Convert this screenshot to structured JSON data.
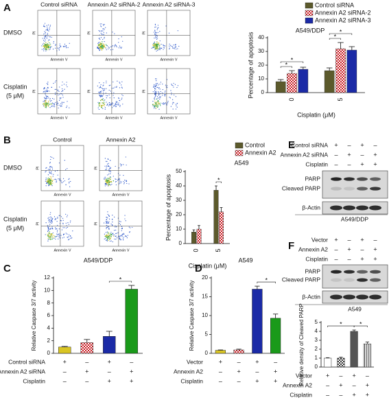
{
  "flow_cytometry": [
    {
      "panel": "A",
      "column_titles": [
        "Control siRNA",
        "Annexin A2 siRNA-2",
        "Annexin A2 siRNA-3"
      ],
      "row_labels": [
        [
          "DMSO"
        ],
        [
          "Cisplatin",
          "(5 μM)"
        ]
      ],
      "x_label": "Annexin V",
      "y_label": "PI"
    },
    {
      "panel": "B",
      "column_titles": [
        "Control",
        "Annexin A2"
      ],
      "row_labels": [
        [
          "DMSO"
        ],
        [
          "Cisplatin",
          "(5 μM)"
        ]
      ],
      "x_label": "Annexin V",
      "y_label": "PI"
    }
  ],
  "chart_data": [
    {
      "type": "grouped_bar",
      "title": "A549/DDP",
      "y_label": "Percentage of apoptosis",
      "x_label": "Cisplatin (μM)",
      "categories": [
        "0",
        "5"
      ],
      "ylim": [
        0,
        40
      ],
      "yticks": [
        0,
        10,
        20,
        30,
        40
      ],
      "series": [
        {
          "name": "Control siRNA",
          "color": "#5c5a2c",
          "pattern": "solid",
          "values": [
            8,
            16
          ],
          "errors": [
            1.5,
            2
          ]
        },
        {
          "name": "Annexin A2 siRNA-2",
          "color": "#c8161d",
          "pattern": "checker",
          "values": [
            14,
            32
          ],
          "errors": [
            2,
            4.5
          ]
        },
        {
          "name": "Annexin A2 siRNA-3",
          "color": "#1b2aa6",
          "pattern": "solid",
          "values": [
            17,
            31
          ],
          "errors": [
            1.5,
            2.5
          ]
        }
      ],
      "significance": [
        {
          "label": "*",
          "category": 0,
          "from": 0,
          "to": 1
        },
        {
          "label": "*",
          "category": 0,
          "from": 0,
          "to": 2
        },
        {
          "label": "*",
          "category": 1,
          "from": 0,
          "to": 1
        },
        {
          "label": "*",
          "category": 1,
          "from": 0,
          "to": 2
        }
      ]
    },
    {
      "type": "grouped_bar",
      "title": "A549",
      "y_label": "Percentage of apoptosis",
      "x_label": "Cisplatin (μM)",
      "categories": [
        "0",
        "5"
      ],
      "ylim": [
        0,
        50
      ],
      "yticks": [
        0,
        10,
        20,
        30,
        40,
        50
      ],
      "series": [
        {
          "name": "Control",
          "color": "#5c5a2c",
          "pattern": "solid",
          "values": [
            8,
            37
          ],
          "errors": [
            1.5,
            3
          ]
        },
        {
          "name": "Annexin A2",
          "color": "#c8161d",
          "pattern": "checker",
          "values": [
            10,
            22
          ],
          "errors": [
            2.5,
            3
          ]
        }
      ],
      "significance": [
        {
          "label": "*",
          "category": 1,
          "from": 0,
          "to": 1
        }
      ]
    },
    {
      "type": "bar",
      "title": "A549/DDP",
      "y_label": "Relative Caspase 3/7 activity",
      "ylim": [
        0,
        12
      ],
      "yticks": [
        0,
        2,
        4,
        6,
        8,
        10,
        12
      ],
      "values": [
        1,
        1.7,
        2.7,
        10.2
      ],
      "errors": [
        0.1,
        0.5,
        0.8,
        0.6
      ],
      "colors": [
        "#d9c524",
        "#c8161d",
        "#1b2aa6",
        "#1a9a1a"
      ],
      "patterns": [
        "solid",
        "checker",
        "solid",
        "solid"
      ],
      "conditions": [
        {
          "name": "Control siRNA",
          "signs": [
            "+",
            "–",
            "+",
            "–"
          ]
        },
        {
          "name": "Annexin A2 siRNA",
          "signs": [
            "–",
            "+",
            "–",
            "+"
          ]
        },
        {
          "name": "Cisplatin",
          "signs": [
            "–",
            "–",
            "+",
            "+"
          ]
        }
      ],
      "significance": [
        {
          "label": "*",
          "from": 2,
          "to": 3
        }
      ]
    },
    {
      "type": "bar",
      "title": "A549",
      "y_label": "Relative Caspase 3/7 activity",
      "ylim": [
        0,
        20
      ],
      "yticks": [
        0,
        5,
        10,
        15,
        20
      ],
      "values": [
        0.8,
        0.9,
        17,
        9.3
      ],
      "errors": [
        0.1,
        0.2,
        0.8,
        1.1
      ],
      "colors": [
        "#d9c524",
        "#c8161d",
        "#1b2aa6",
        "#1a9a1a"
      ],
      "patterns": [
        "solid",
        "checker",
        "solid",
        "solid"
      ],
      "conditions": [
        {
          "name": "Vector",
          "signs": [
            "+",
            "–",
            "+",
            "–"
          ]
        },
        {
          "name": "Annexin A2",
          "signs": [
            "–",
            "+",
            "–",
            "+"
          ]
        },
        {
          "name": "Cisplatin",
          "signs": [
            "–",
            "–",
            "+",
            "+"
          ]
        }
      ],
      "significance": [
        {
          "label": "*",
          "from": 2,
          "to": 3
        }
      ]
    },
    {
      "type": "bar",
      "y_label": "Relative density of Cleaved PARP",
      "ylim": [
        0,
        5
      ],
      "yticks": [
        0,
        1,
        2,
        3,
        4,
        5
      ],
      "values": [
        1,
        1,
        4,
        2.6
      ],
      "errors": [
        0.05,
        0.1,
        0.15,
        0.2
      ],
      "colors": [
        "#ffffff",
        "#333333",
        "#555555",
        "#555555"
      ],
      "patterns": [
        "solid",
        "checker",
        "solid",
        "stripes"
      ],
      "conditions": [
        {
          "name": "Vector",
          "signs": [
            "+",
            "–",
            "+",
            "–"
          ]
        },
        {
          "name": "Annexin A2",
          "signs": [
            "–",
            "+",
            "–",
            "+"
          ]
        },
        {
          "name": "Cisplatin",
          "signs": [
            "–",
            "–",
            "+",
            "+"
          ]
        }
      ],
      "significance": [
        {
          "label": "*",
          "from": 0,
          "to": 2
        },
        {
          "label": "*",
          "from": 2,
          "to": 3
        }
      ]
    }
  ],
  "blots": [
    {
      "panel": "E",
      "conditions": [
        {
          "name": "Control siRNA",
          "signs": [
            "+",
            "–",
            "+",
            "–"
          ]
        },
        {
          "name": "Annexin A2 siRNA",
          "signs": [
            "–",
            "+",
            "–",
            "+"
          ]
        },
        {
          "name": "Cisplatin",
          "signs": [
            "–",
            "–",
            "+",
            "+"
          ]
        }
      ],
      "bands": [
        "PARP",
        "Cleaved PARP",
        "β-Actin"
      ],
      "cell_line": "A549/DDP"
    },
    {
      "panel": "F",
      "conditions": [
        {
          "name": "Vector",
          "signs": [
            "+",
            "–",
            "+",
            "–"
          ]
        },
        {
          "name": "Annexin A2",
          "signs": [
            "–",
            "+",
            "–",
            "+"
          ]
        },
        {
          "name": "Cisplatin",
          "signs": [
            "–",
            "–",
            "+",
            "+"
          ]
        }
      ],
      "bands": [
        "PARP",
        "Cleaved PARP",
        "β-Actin"
      ],
      "cell_line": "A549"
    }
  ],
  "panels_extra": {
    "C": "C",
    "D": "D"
  }
}
